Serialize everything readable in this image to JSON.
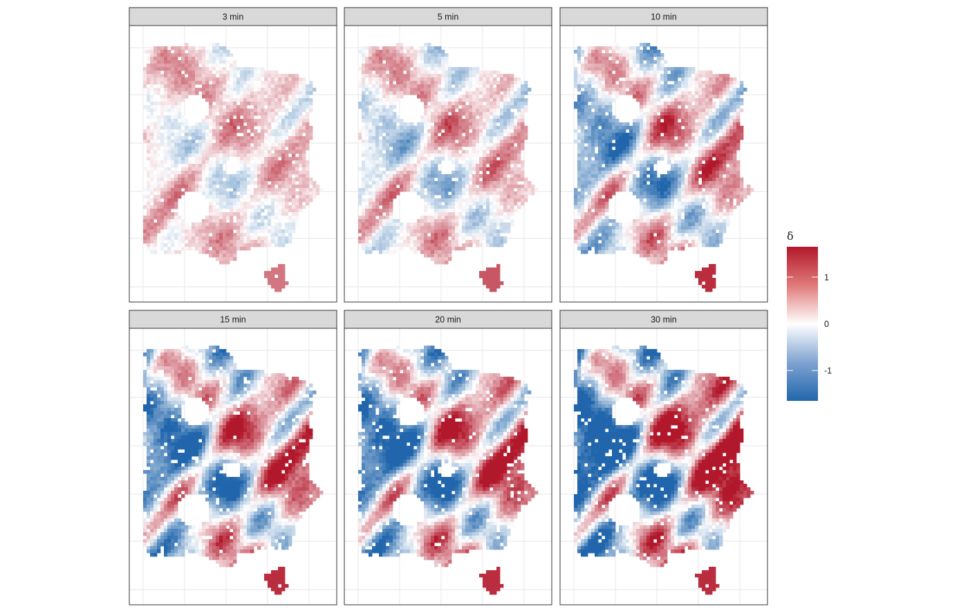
{
  "chart_data": {
    "type": "heatmap",
    "title": "",
    "xlabel": "",
    "ylabel": "",
    "grid": true,
    "legend_placement": "right",
    "colorscale": {
      "low": "#2166ac",
      "mid": "#ffffff",
      "high": "#b2182b",
      "midpoint": 0,
      "range": [
        -1.65,
        1.65
      ]
    },
    "legend": {
      "title": "δ",
      "ticks": [
        1,
        0,
        -1
      ],
      "tick_labels": [
        "1",
        "0",
        "-1"
      ]
    },
    "panels": [
      {
        "label": "3 min",
        "intensity": 0.45,
        "bias": 0.22
      },
      {
        "label": "5 min",
        "intensity": 0.6,
        "bias": 0.12
      },
      {
        "label": "10 min",
        "intensity": 0.85,
        "bias": 0.0
      },
      {
        "label": "15 min",
        "intensity": 1.0,
        "bias": 0.0
      },
      {
        "label": "20 min",
        "intensity": 1.05,
        "bias": 0.0
      },
      {
        "label": "30 min",
        "intensity": 1.2,
        "bias": 0.05
      }
    ]
  }
}
